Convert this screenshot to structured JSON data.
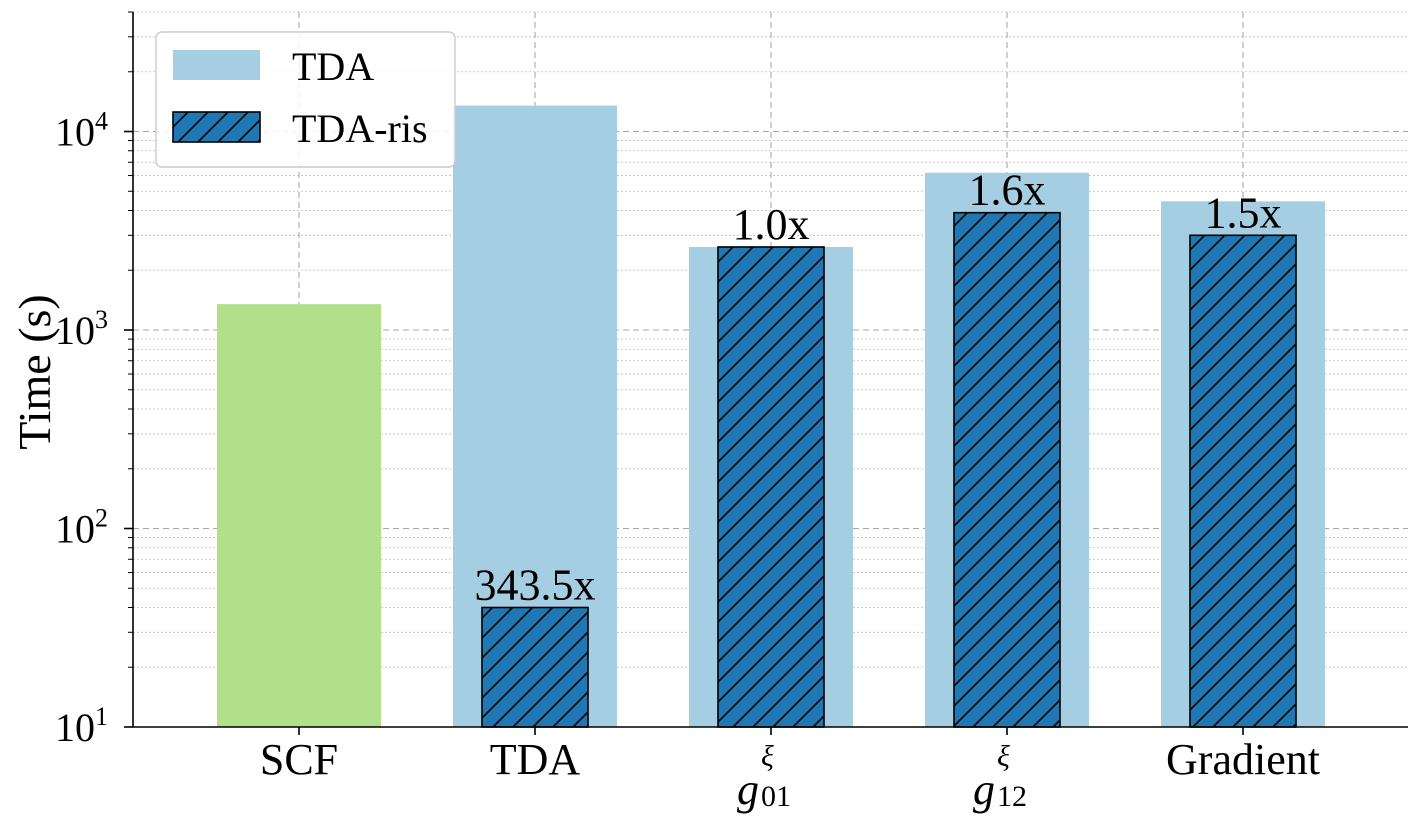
{
  "chart_data": {
    "type": "bar",
    "ylabel": "Time (s)",
    "yscale": "log",
    "ylim": [
      10,
      40000
    ],
    "grid": true,
    "legend_position": "top-left",
    "yticks": [
      {
        "value": 10,
        "base": "10",
        "exp": "1"
      },
      {
        "value": 100,
        "base": "10",
        "exp": "2"
      },
      {
        "value": 1000,
        "base": "10",
        "exp": "3"
      },
      {
        "value": 10000,
        "base": "10",
        "exp": "4"
      }
    ],
    "categories": [
      {
        "main": "SCF",
        "sup": "",
        "sub": ""
      },
      {
        "main": "TDA",
        "sup": "",
        "sub": ""
      },
      {
        "main": "g",
        "sup": "ξ",
        "sub": "01"
      },
      {
        "main": "g",
        "sup": "ξ",
        "sub": "12"
      },
      {
        "main": "Gradient",
        "sup": "",
        "sub": ""
      }
    ],
    "scf": {
      "value": 1350,
      "color": "#b2df8a"
    },
    "series": [
      {
        "name": "TDA",
        "color": "#a6cee3",
        "values": [
          null,
          13500,
          2620,
          6200,
          4450
        ]
      },
      {
        "name": "TDA-ris",
        "color": "#1f78b4",
        "hatch": true,
        "values": [
          null,
          40,
          2620,
          3900,
          3000
        ]
      }
    ],
    "speedup_labels": [
      "",
      "343.5x",
      "1.0x",
      "1.6x",
      "1.5x"
    ]
  }
}
